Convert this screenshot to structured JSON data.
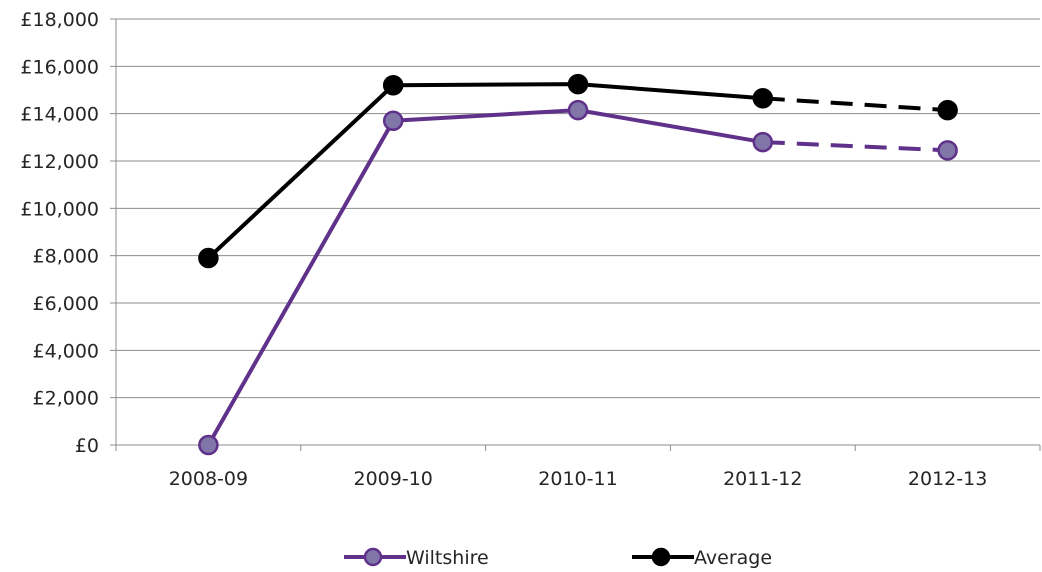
{
  "chart_data": {
    "type": "line",
    "title": "",
    "xlabel": "",
    "ylabel": "",
    "categories": [
      "2008-09",
      "2009-10",
      "2010-11",
      "2011-12",
      "2012-13"
    ],
    "ylim": [
      0,
      18000
    ],
    "yticks": [
      0,
      2000,
      4000,
      6000,
      8000,
      10000,
      12000,
      14000,
      16000,
      18000
    ],
    "ytick_labels": [
      "£0",
      "£2,000",
      "£4,000",
      "£6,000",
      "£8,000",
      "£10,000",
      "£12,000",
      "£14,000",
      "£16,000",
      "£18,000"
    ],
    "grid": true,
    "legend_position": "bottom",
    "projected_from_index": 3,
    "series": [
      {
        "name": "Wiltshire",
        "values": [
          0,
          13700,
          14150,
          12800,
          12450
        ],
        "line_color": "#60318a",
        "marker_fill": "#8077a8",
        "marker_edge": "#60318a"
      },
      {
        "name": "Average",
        "values": [
          7900,
          15200,
          15250,
          14650,
          14150
        ],
        "line_color": "#000000",
        "marker_fill": "#000000",
        "marker_edge": "#000000"
      }
    ]
  }
}
